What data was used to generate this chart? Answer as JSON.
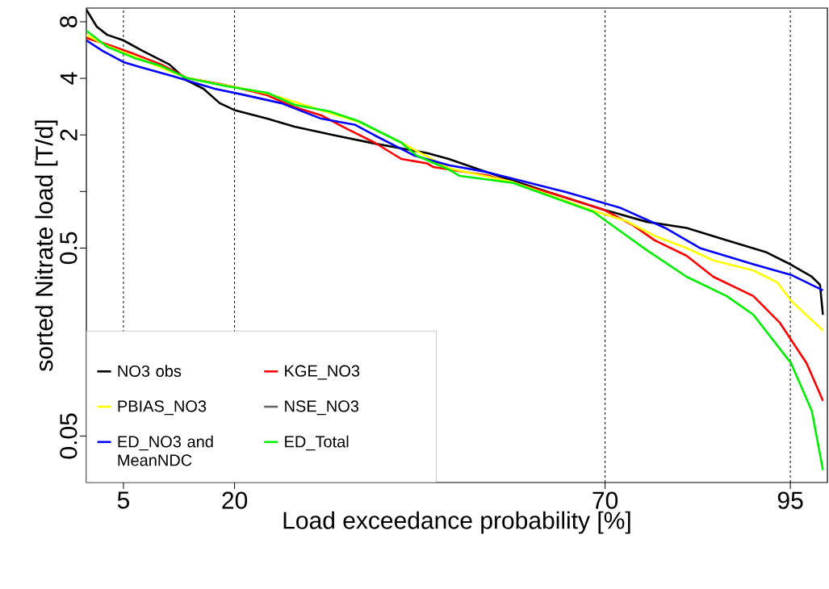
{
  "chart_data": {
    "type": "line",
    "xlabel": "Load exceedance probability [%]",
    "ylabel": "sorted Nitrate load [T/d]",
    "log": "y",
    "xlim": [
      0,
      100
    ],
    "ylim": [
      0.0283,
      9.46
    ],
    "xticks": [
      5,
      20,
      70,
      95
    ],
    "yticks": [
      8,
      4,
      2,
      {
        "value": 1,
        "label": null
      },
      0.5,
      0.05
    ],
    "grid": "x",
    "legend": "bottom left",
    "line_style": "solid",
    "marker": "none",
    "series": [
      {
        "name": "NO3 obs",
        "color": "#000000",
        "x": [
          0,
          1.4,
          2.8,
          5.0,
          7.6,
          11.2,
          13.6,
          15.8,
          18.0,
          20.1,
          24.4,
          28.1,
          33.5,
          38.9,
          46.0,
          48.9,
          54.0,
          63.0,
          69.8,
          75.6,
          81.0,
          86.4,
          91.8,
          95.1,
          97.9,
          99.0,
          99.4
        ],
        "values": [
          9.27,
          7.54,
          6.82,
          6.37,
          5.6,
          4.74,
          3.89,
          3.52,
          2.95,
          2.7,
          2.44,
          2.21,
          1.99,
          1.8,
          1.6,
          1.49,
          1.27,
          0.975,
          0.8,
          0.69,
          0.64,
          0.55,
          0.474,
          0.408,
          0.352,
          0.319,
          0.221
        ]
      },
      {
        "name": "KGE_NO3",
        "color": "#ff0000",
        "x": [
          0,
          2.8,
          6.5,
          10.1,
          13.6,
          17.3,
          20.1,
          24.4,
          28.1,
          31.7,
          35.2,
          38.9,
          42.5,
          46.0,
          46.8,
          54.0,
          63.0,
          69.8,
          73.8,
          76.7,
          81.0,
          84.6,
          90.0,
          93.6,
          97.2,
          99.4
        ],
        "values": [
          6.56,
          6.07,
          5.38,
          4.74,
          4.01,
          3.78,
          3.59,
          3.25,
          2.81,
          2.54,
          2.15,
          1.82,
          1.49,
          1.41,
          1.35,
          1.22,
          0.975,
          0.8,
          0.66,
          0.55,
          0.455,
          0.352,
          0.278,
          0.2,
          0.122,
          0.077
        ]
      },
      {
        "name": "PBIAS_NO3",
        "color": "#ffff00",
        "x": [
          0,
          2.8,
          6.5,
          13.6,
          24.4,
          36.7,
          42.5,
          48.9,
          57.6,
          68.4,
          72.7,
          76.7,
          81.0,
          84.6,
          90.0,
          93.2,
          95.1,
          99.4
        ],
        "values": [
          6.8,
          5.95,
          5.2,
          4.01,
          3.33,
          2.35,
          1.82,
          1.33,
          1.12,
          0.79,
          0.7,
          0.58,
          0.5,
          0.43,
          0.38,
          0.329,
          0.262,
          0.182
        ]
      },
      {
        "name": "NSE_NO3",
        "color": "#666666"
      },
      {
        "name": "ED_NO3 and MeanNDC",
        "color": "#0000ff",
        "x": [
          0,
          2.2,
          5.0,
          7.2,
          11.9,
          17.3,
          20.9,
          26.3,
          31.7,
          36.3,
          38.9,
          44.3,
          48.9,
          54.0,
          64.8,
          72.0,
          78.1,
          82.8,
          90.0,
          95.1,
          99.4
        ],
        "values": [
          6.37,
          5.6,
          4.88,
          4.6,
          4.08,
          3.52,
          3.29,
          2.95,
          2.44,
          2.26,
          1.99,
          1.55,
          1.38,
          1.27,
          0.99,
          0.82,
          0.64,
          0.5,
          0.41,
          0.36,
          0.298
        ]
      },
      {
        "name": "ED_Total",
        "color": "#00ee00",
        "x": [
          0,
          2.8,
          6.5,
          10.1,
          13.6,
          19.0,
          24.4,
          28.1,
          32.8,
          36.7,
          42.5,
          44.6,
          48.9,
          50.4,
          57.6,
          68.4,
          72.7,
          75.6,
          81.0,
          86.4,
          90.0,
          95.1,
          97.9,
          99.4
        ],
        "values": [
          7.18,
          5.89,
          5.13,
          4.65,
          4.01,
          3.63,
          3.35,
          2.89,
          2.67,
          2.37,
          1.82,
          1.55,
          1.31,
          1.21,
          1.11,
          0.78,
          0.59,
          0.488,
          0.352,
          0.278,
          0.221,
          0.122,
          0.068,
          0.033
        ]
      }
    ]
  }
}
